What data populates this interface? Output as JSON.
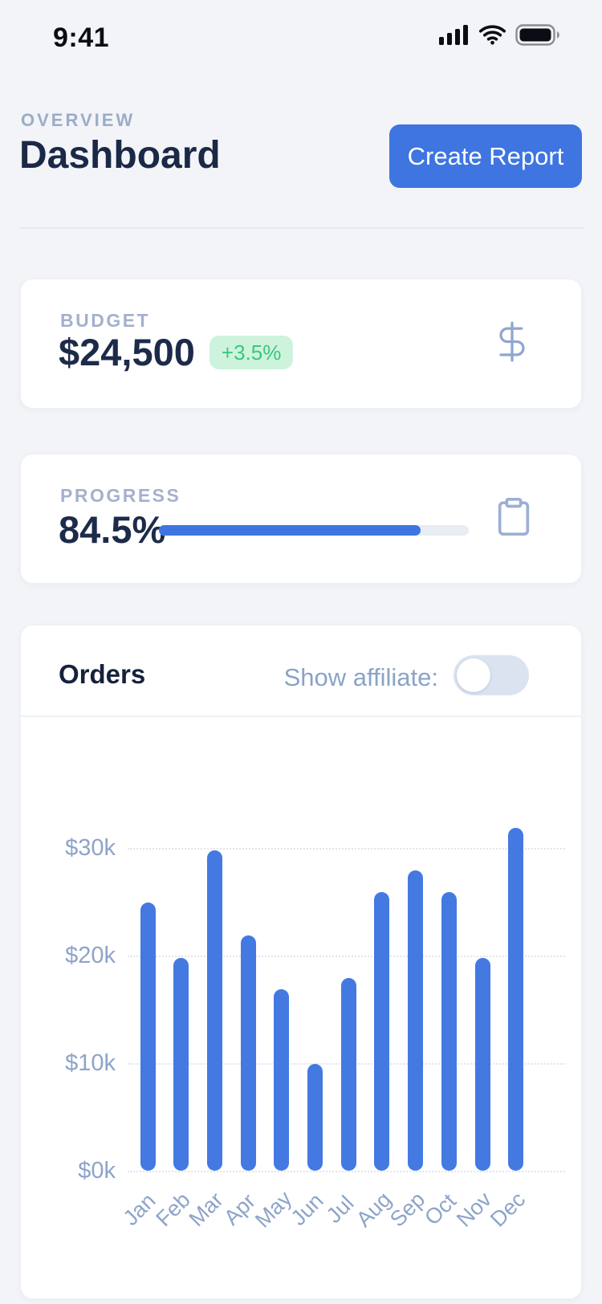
{
  "status_bar": {
    "time": "9:41",
    "icons": [
      "cellular-signal-icon",
      "wifi-icon",
      "battery-icon"
    ]
  },
  "header": {
    "eyebrow": "OVERVIEW",
    "title": "Dashboard",
    "cta_label": "Create Report"
  },
  "cards": {
    "budget": {
      "label": "BUDGET",
      "value": "$24,500",
      "delta_badge": "+3.5%",
      "icon": "dollar-sign"
    },
    "progress": {
      "label": "PROGRESS",
      "value": "84.5%",
      "progress_pct": 84.5,
      "icon": "clipboard"
    },
    "orders": {
      "title": "Orders",
      "toggle_label": "Show affiliate:",
      "toggle_state": "off"
    }
  },
  "chart_data": {
    "type": "bar",
    "title": "Orders",
    "categories": [
      "Jan",
      "Feb",
      "Mar",
      "Apr",
      "May",
      "Jun",
      "Jul",
      "Aug",
      "Sep",
      "Oct",
      "Nov",
      "Dec"
    ],
    "values": [
      24.9,
      19.8,
      29.8,
      21.9,
      16.9,
      9.9,
      17.9,
      25.9,
      27.9,
      25.9,
      19.8,
      31.9
    ],
    "unit": "USD thousands",
    "xlabel": "",
    "ylabel": "",
    "yticks": [
      "$0k",
      "$10k",
      "$20k",
      "$30k"
    ],
    "ytick_values": [
      0,
      10,
      20,
      30
    ],
    "ylim": [
      0,
      33.5
    ],
    "grid": "horizontal-dotted",
    "legend": "none",
    "bar_color": "#4479e2"
  },
  "colors": {
    "background": "#f2f4f8",
    "card": "#ffffff",
    "accent_blue": "#3e75e0",
    "bar_blue": "#4479e2",
    "navy_text": "#1d2b4a",
    "muted_label": "#a3b1ce",
    "chart_label": "#8da4c9",
    "badge_bg": "#cdf3dd",
    "badge_text": "#3ec57d",
    "toggle_track": "#dce3f0",
    "progress_track": "#e8ecf3"
  }
}
